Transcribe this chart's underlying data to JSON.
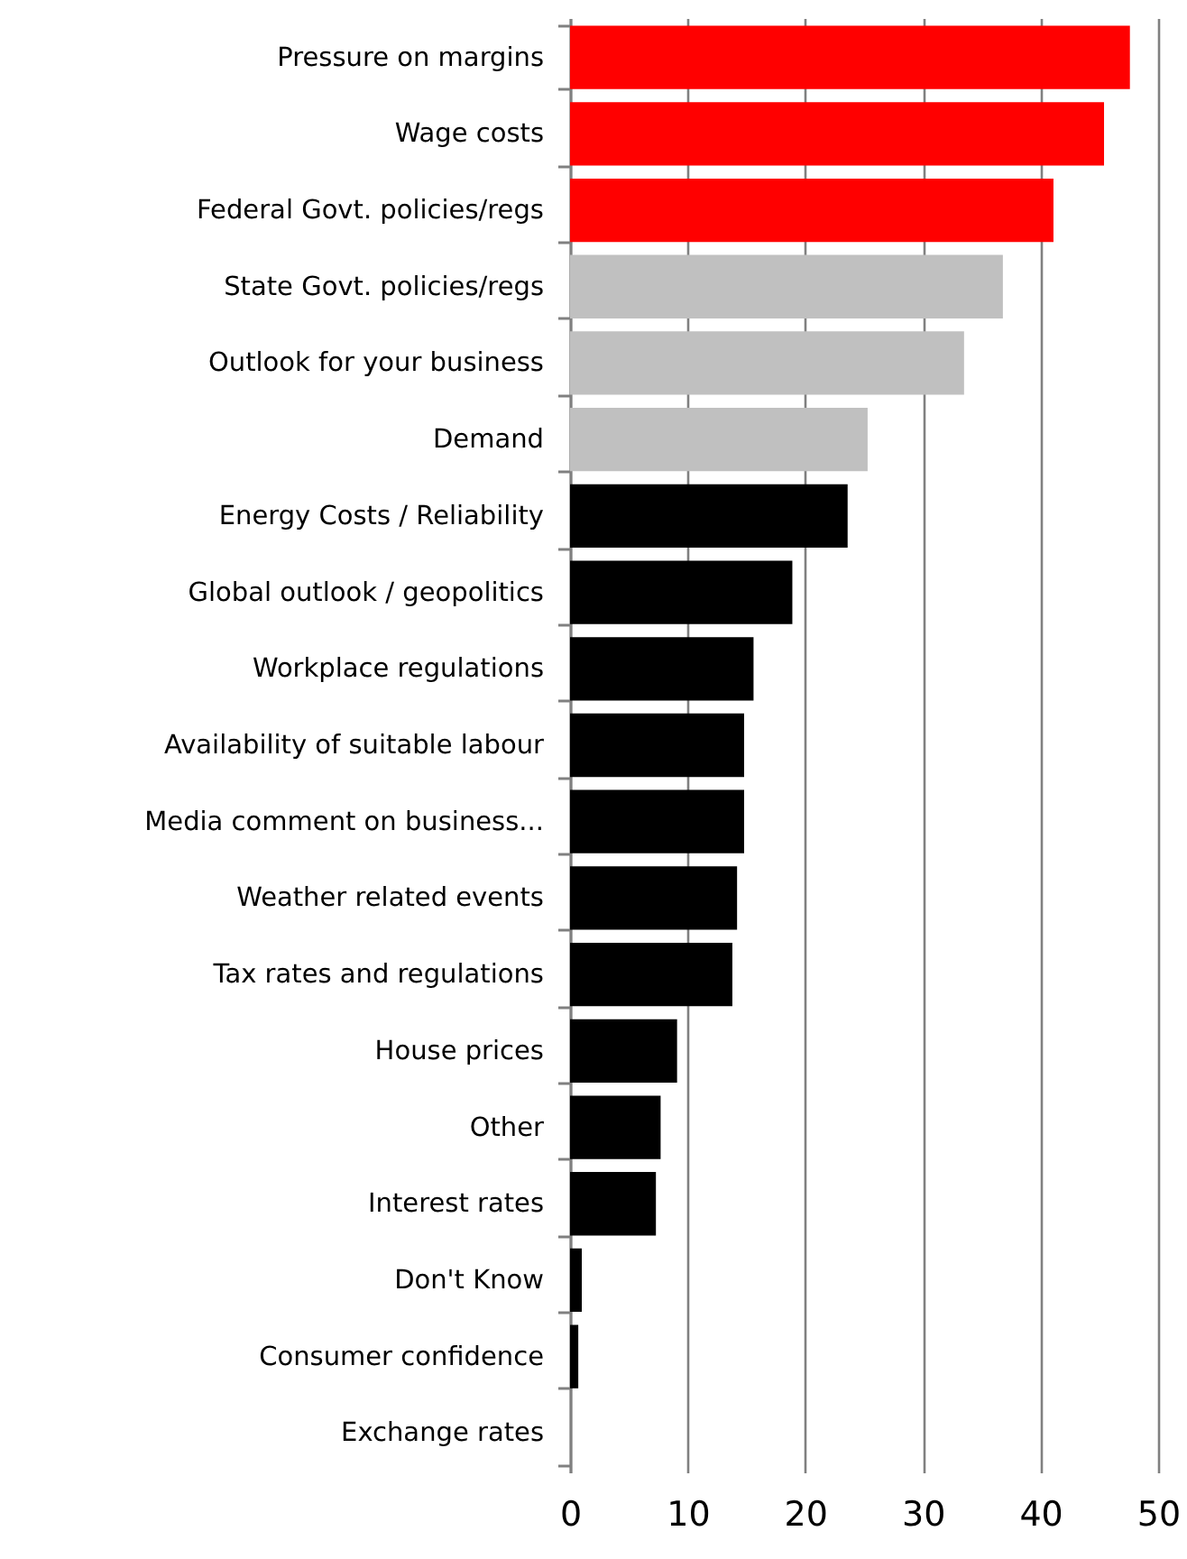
{
  "chart_data": {
    "type": "bar",
    "orientation": "horizontal",
    "categories": [
      "Pressure on margins",
      "Wage costs",
      "Federal Govt. policies/regs",
      "State Govt. policies/regs",
      "Outlook for your business",
      "Demand",
      "Energy Costs / Reliability",
      "Global outlook / geopolitics",
      "Workplace regulations",
      "Availability of suitable labour",
      "Media comment on business...",
      "Weather related events",
      "Tax rates and regulations",
      "House prices",
      "Other",
      "Interest rates",
      "Don't Know",
      "Consumer confidence",
      "Exchange rates"
    ],
    "values": [
      47.6,
      45.4,
      41.1,
      36.8,
      33.5,
      25.3,
      23.6,
      18.9,
      15.6,
      14.8,
      14.8,
      14.2,
      13.8,
      9.1,
      7.7,
      7.3,
      1.0,
      0.7,
      0
    ],
    "colors": [
      "#ff0000",
      "#ff0000",
      "#ff0000",
      "#c0c0c0",
      "#c0c0c0",
      "#c0c0c0",
      "#000000",
      "#000000",
      "#000000",
      "#000000",
      "#000000",
      "#000000",
      "#000000",
      "#000000",
      "#000000",
      "#000000",
      "#000000",
      "#000000",
      "#000000"
    ],
    "xlim": [
      0,
      50
    ],
    "xticks": [
      0,
      10,
      20,
      30,
      40,
      50
    ],
    "grid": "x"
  }
}
